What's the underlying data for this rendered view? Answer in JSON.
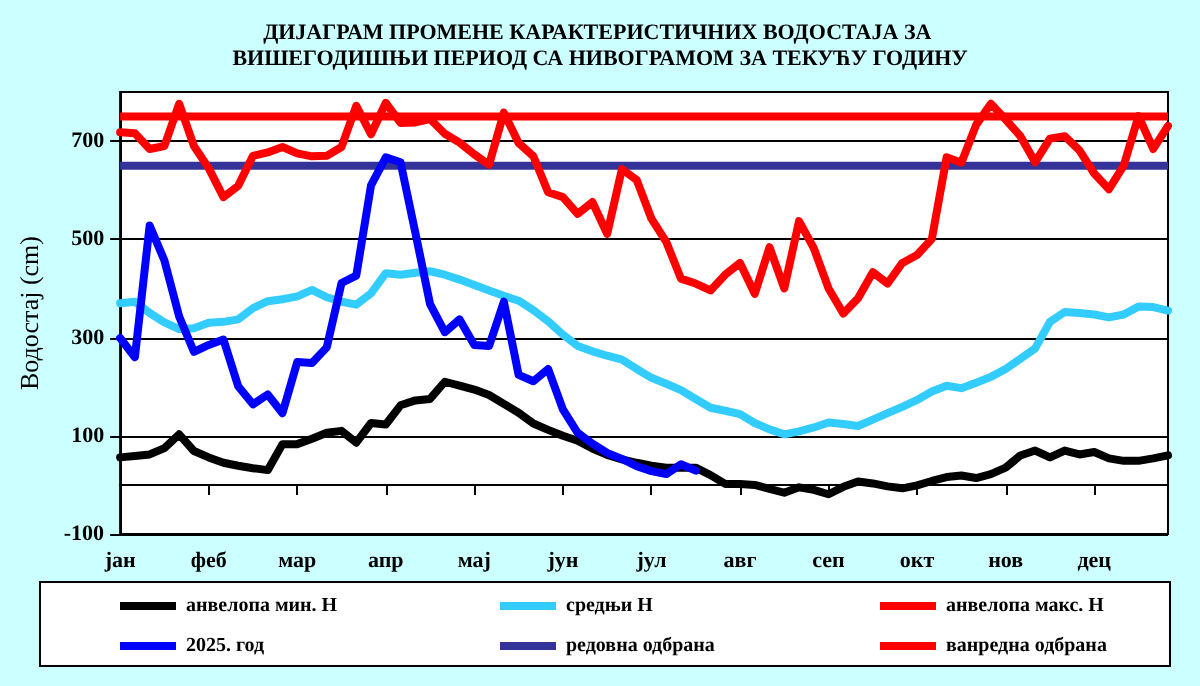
{
  "chart_data": {
    "type": "line",
    "title": "ДИЈАГРАМ ПРОМЕНЕ КАРАКТЕРИСТИЧНИХ ВОДОСТАЈА ЗА ВИШЕГОДИШЊИ ПЕРИОД СА НИВОГРАМОМ ЗА ТЕКУЋУ ГОДИНУ",
    "ylabel": "Водостај (cm)",
    "categories": [
      "јан",
      null,
      null,
      null,
      null,
      null,
      "феб",
      null,
      null,
      null,
      null,
      null,
      "мар",
      null,
      null,
      null,
      null,
      null,
      "апр",
      null,
      null,
      null,
      null,
      null,
      "мај",
      null,
      null,
      null,
      null,
      null,
      "јун",
      null,
      null,
      null,
      null,
      null,
      "јул",
      null,
      null,
      null,
      null,
      null,
      "авг",
      null,
      null,
      null,
      null,
      null,
      "сеп",
      null,
      null,
      null,
      null,
      null,
      "окт",
      null,
      null,
      null,
      null,
      null,
      "нов",
      null,
      null,
      null,
      null,
      null,
      "дец",
      null,
      null,
      null,
      null,
      null
    ],
    "ylim": [
      -100,
      800
    ],
    "yticks": [
      -100,
      100,
      300,
      500,
      700
    ],
    "grid": "y",
    "legend": "bottom",
    "marker": "none",
    "line_style": "solid",
    "series": [
      {
        "name": "анвелопа мин. Н",
        "color": "#000000",
        "values": [
          56,
          59,
          62,
          75,
          103,
          69,
          56,
          45,
          39,
          34,
          30,
          83,
          83,
          94,
          106,
          110,
          86,
          126,
          123,
          162,
          172,
          175,
          210,
          202,
          194,
          183,
          165,
          147,
          125,
          112,
          100,
          90,
          74,
          61,
          52,
          45,
          39,
          35,
          35,
          35,
          20,
          2,
          2,
          0,
          -8,
          -16,
          -5,
          -10,
          -19,
          -4,
          7,
          3,
          -3,
          -7,
          -1,
          8,
          16,
          19,
          14,
          22,
          35,
          60,
          70,
          56,
          70,
          62,
          67,
          54,
          49,
          49,
          54,
          60
        ]
      },
      {
        "name": "средњи Н",
        "color": "#33ccff",
        "values": [
          370,
          373,
          350,
          331,
          317,
          319,
          330,
          332,
          337,
          360,
          374,
          378,
          384,
          397,
          382,
          373,
          367,
          390,
          431,
          428,
          432,
          435,
          428,
          418,
          407,
          396,
          385,
          375,
          356,
          333,
          306,
          283,
          272,
          263,
          255,
          236,
          218,
          206,
          193,
          175,
          157,
          151,
          144,
          126,
          113,
          103,
          109,
          117,
          127,
          124,
          120,
          133,
          146,
          159,
          173,
          190,
          202,
          197,
          208,
          220,
          236,
          257,
          278,
          332,
          352,
          350,
          347,
          341,
          347,
          363,
          362,
          355
        ]
      },
      {
        "name": "анвелопа макс. Н",
        "color": "#ff0000",
        "values": [
          718,
          716,
          684,
          690,
          776,
          690,
          645,
          586,
          609,
          670,
          677,
          688,
          675,
          669,
          670,
          688,
          772,
          714,
          778,
          737,
          738,
          745,
          715,
          697,
          673,
          652,
          758,
          696,
          669,
          596,
          586,
          552,
          576,
          511,
          643,
          621,
          542,
          495,
          420,
          410,
          396,
          428,
          452,
          389,
          484,
          400,
          537,
          482,
          400,
          349,
          380,
          433,
          410,
          452,
          468,
          501,
          667,
          656,
          733,
          776,
          744,
          710,
          657,
          705,
          710,
          681,
          634,
          602,
          650,
          751,
          684,
          731
        ]
      },
      {
        "name": "2025. год",
        "color": "#0000ff",
        "values": [
          299,
          260,
          528,
          457,
          343,
          271,
          285,
          296,
          201,
          164,
          184,
          146,
          250,
          248,
          280,
          411,
          426,
          610,
          667,
          657,
          514,
          368,
          311,
          337,
          285,
          283,
          373,
          224,
          211,
          236,
          154,
          106,
          84,
          65,
          53,
          38,
          28,
          22,
          42,
          29,
          null,
          null,
          null,
          null,
          null,
          null,
          null,
          null,
          null,
          null,
          null,
          null,
          null,
          null,
          null,
          null,
          null,
          null,
          null,
          null,
          null,
          null,
          null,
          null,
          null,
          null,
          null,
          null,
          null,
          null,
          null,
          null
        ]
      }
    ],
    "ref_lines": [
      {
        "axis": "y",
        "value": 650,
        "label": "редовна одбрана",
        "color": "#333399"
      },
      {
        "axis": "y",
        "value": 750,
        "label": "ванредна одбрана",
        "color": "#ff0000"
      }
    ]
  }
}
